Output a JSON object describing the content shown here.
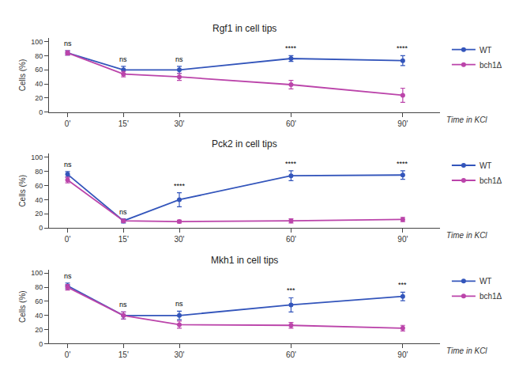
{
  "chart_data": [
    {
      "type": "line",
      "title": "Rgf1 in cell tips",
      "xlabel": "Time in KCl",
      "ylabel": "Cells (%)",
      "x": [
        0,
        15,
        30,
        60,
        90
      ],
      "xlim": [
        -5,
        100
      ],
      "xticks": [
        {
          "value": 0,
          "label": "0'"
        },
        {
          "value": 15,
          "label": "15'"
        },
        {
          "value": 30,
          "label": "30'"
        },
        {
          "value": 60,
          "label": "60'"
        },
        {
          "value": 90,
          "label": "90'"
        }
      ],
      "ylim": [
        0,
        105
      ],
      "yticks": [
        0,
        20,
        40,
        60,
        80,
        100
      ],
      "grid": false,
      "legend": "upper right",
      "marker": "circle",
      "series": [
        {
          "name": "WT",
          "color": "#3355bb",
          "values": [
            84,
            60,
            60,
            76,
            73
          ],
          "errors": [
            3,
            5,
            5,
            4,
            7
          ]
        },
        {
          "name": "bch1Δ",
          "color": "#bb44aa",
          "values": [
            84,
            54,
            50,
            39,
            24
          ],
          "errors": [
            3,
            4,
            5,
            6,
            10
          ]
        }
      ],
      "annotations": [
        {
          "x": 0,
          "text": "ns"
        },
        {
          "x": 15,
          "text": "ns"
        },
        {
          "x": 30,
          "text": "ns"
        },
        {
          "x": 60,
          "text": "****"
        },
        {
          "x": 90,
          "text": "****"
        }
      ]
    },
    {
      "type": "line",
      "title": "Pck2 in cell tips",
      "xlabel": "Time in KCl",
      "ylabel": "Cells (%)",
      "x": [
        0,
        15,
        30,
        60,
        90
      ],
      "xlim": [
        -5,
        100
      ],
      "xticks": [
        {
          "value": 0,
          "label": "0'"
        },
        {
          "value": 15,
          "label": "15'"
        },
        {
          "value": 30,
          "label": "30'"
        },
        {
          "value": 60,
          "label": "60'"
        },
        {
          "value": 90,
          "label": "90'"
        }
      ],
      "ylim": [
        0,
        105
      ],
      "yticks": [
        0,
        20,
        40,
        60,
        80,
        100
      ],
      "grid": false,
      "legend": "upper right",
      "marker": "circle",
      "series": [
        {
          "name": "WT",
          "color": "#3355bb",
          "values": [
            76,
            10,
            40,
            74,
            75
          ],
          "errors": [
            4,
            3,
            10,
            7,
            6
          ]
        },
        {
          "name": "bch1Δ",
          "color": "#bb44aa",
          "values": [
            68,
            10,
            9,
            10,
            12
          ],
          "errors": [
            4,
            2,
            2,
            3,
            3
          ]
        }
      ],
      "annotations": [
        {
          "x": 0,
          "text": "ns"
        },
        {
          "x": 15,
          "text": "ns"
        },
        {
          "x": 30,
          "text": "****"
        },
        {
          "x": 60,
          "text": "****"
        },
        {
          "x": 90,
          "text": "****"
        }
      ]
    },
    {
      "type": "line",
      "title": "Mkh1 in cell tips",
      "xlabel": "Time in KCl",
      "ylabel": "Cells (%)",
      "x": [
        0,
        15,
        30,
        60,
        90
      ],
      "xlim": [
        -5,
        100
      ],
      "xticks": [
        {
          "value": 0,
          "label": "0'"
        },
        {
          "value": 15,
          "label": "15'"
        },
        {
          "value": 30,
          "label": "30'"
        },
        {
          "value": 60,
          "label": "60'"
        },
        {
          "value": 90,
          "label": "90'"
        }
      ],
      "ylim": [
        0,
        105
      ],
      "yticks": [
        0,
        20,
        40,
        60,
        80,
        100
      ],
      "grid": false,
      "legend": "upper right",
      "marker": "circle",
      "series": [
        {
          "name": "WT",
          "color": "#3355bb",
          "values": [
            82,
            40,
            40,
            55,
            67
          ],
          "errors": [
            4,
            5,
            6,
            10,
            6
          ]
        },
        {
          "name": "bch1Δ",
          "color": "#bb44aa",
          "values": [
            80,
            40,
            27,
            26,
            22
          ],
          "errors": [
            4,
            5,
            5,
            4,
            4
          ]
        }
      ],
      "annotations": [
        {
          "x": 0,
          "text": "ns"
        },
        {
          "x": 15,
          "text": "ns"
        },
        {
          "x": 30,
          "text": "ns"
        },
        {
          "x": 60,
          "text": "***"
        },
        {
          "x": 90,
          "text": "***"
        }
      ]
    }
  ]
}
